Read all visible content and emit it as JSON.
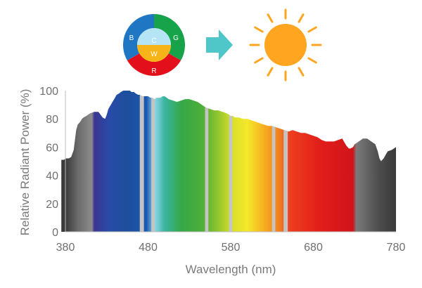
{
  "chart_data": {
    "type": "area",
    "title": "",
    "xlabel": "Wavelength (nm)",
    "ylabel": "Relative Radiant Power (%)",
    "xlim": [
      380,
      780
    ],
    "ylim": [
      0,
      100
    ],
    "x_ticks": [
      "380",
      "480",
      "580",
      "680",
      "780"
    ],
    "y_ticks": [
      "0",
      "20",
      "40",
      "60",
      "80",
      "100"
    ],
    "grid": false,
    "legend": "none",
    "series": [
      {
        "x": [
          375,
          378,
          381,
          384,
          387,
          390,
          393,
          395,
          398,
          400,
          402,
          405,
          410,
          415,
          420,
          425,
          428,
          430,
          432,
          435,
          438,
          440,
          442,
          445,
          447,
          450,
          453,
          455,
          458,
          460,
          463,
          465,
          468,
          470,
          473,
          475,
          478,
          480,
          483,
          485,
          488,
          490,
          493,
          495,
          498,
          500,
          505,
          510,
          515,
          520,
          525,
          530,
          535,
          540,
          545,
          550,
          555,
          560,
          565,
          570,
          575,
          578,
          580,
          583,
          585,
          590,
          595,
          600,
          605,
          610,
          615,
          620,
          625,
          630,
          635,
          640,
          645,
          650,
          655,
          660,
          665,
          670,
          675,
          680,
          685,
          690,
          695,
          700,
          705,
          710,
          715,
          718,
          720,
          723,
          725,
          728,
          730,
          735,
          740,
          745,
          750,
          755,
          758,
          760,
          762,
          765,
          768,
          770,
          775,
          780
        ],
        "y": [
          51,
          51,
          52,
          52,
          53,
          58,
          72,
          76,
          78,
          80,
          81,
          82,
          84,
          85,
          85,
          81,
          80,
          83,
          87,
          90,
          93,
          95,
          97,
          98,
          99,
          100,
          100,
          100,
          100,
          99,
          99,
          98,
          97,
          97,
          96,
          96,
          96,
          96,
          95,
          95,
          94,
          95,
          95,
          95,
          96,
          96,
          94,
          93,
          92,
          93,
          94,
          94,
          93,
          92,
          90,
          88,
          87,
          86,
          86,
          85,
          84,
          83,
          82,
          82,
          81,
          81,
          80,
          80,
          79,
          78,
          77,
          76,
          75,
          75,
          74,
          73,
          72,
          71,
          72,
          71,
          70,
          70,
          69,
          68,
          67,
          65,
          64,
          64,
          64,
          65,
          66,
          63,
          61,
          59,
          59,
          60,
          62,
          64,
          66,
          66,
          64,
          62,
          57,
          52,
          50,
          52,
          55,
          57,
          58,
          60
        ]
      }
    ],
    "gaps": [
      [
        470,
        475
      ],
      [
        484,
        488
      ],
      [
        549,
        553
      ],
      [
        578,
        582
      ],
      [
        630,
        634
      ],
      [
        644,
        649
      ]
    ]
  },
  "graphic": {
    "wheel_labels": {
      "b": "B",
      "g": "G",
      "r": "R",
      "c": "C",
      "w": "W"
    },
    "colors": {
      "blue": "#1f77c4",
      "green": "#16a34a",
      "red": "#e3101b",
      "cyan": "#b5e4f5",
      "white_yellow": "#f7b419",
      "arrow": "#4fc6c7",
      "sun": "#ffa51f"
    },
    "icons": [
      "led-color-wheel-icon",
      "right-arrow-icon",
      "sun-icon"
    ]
  }
}
